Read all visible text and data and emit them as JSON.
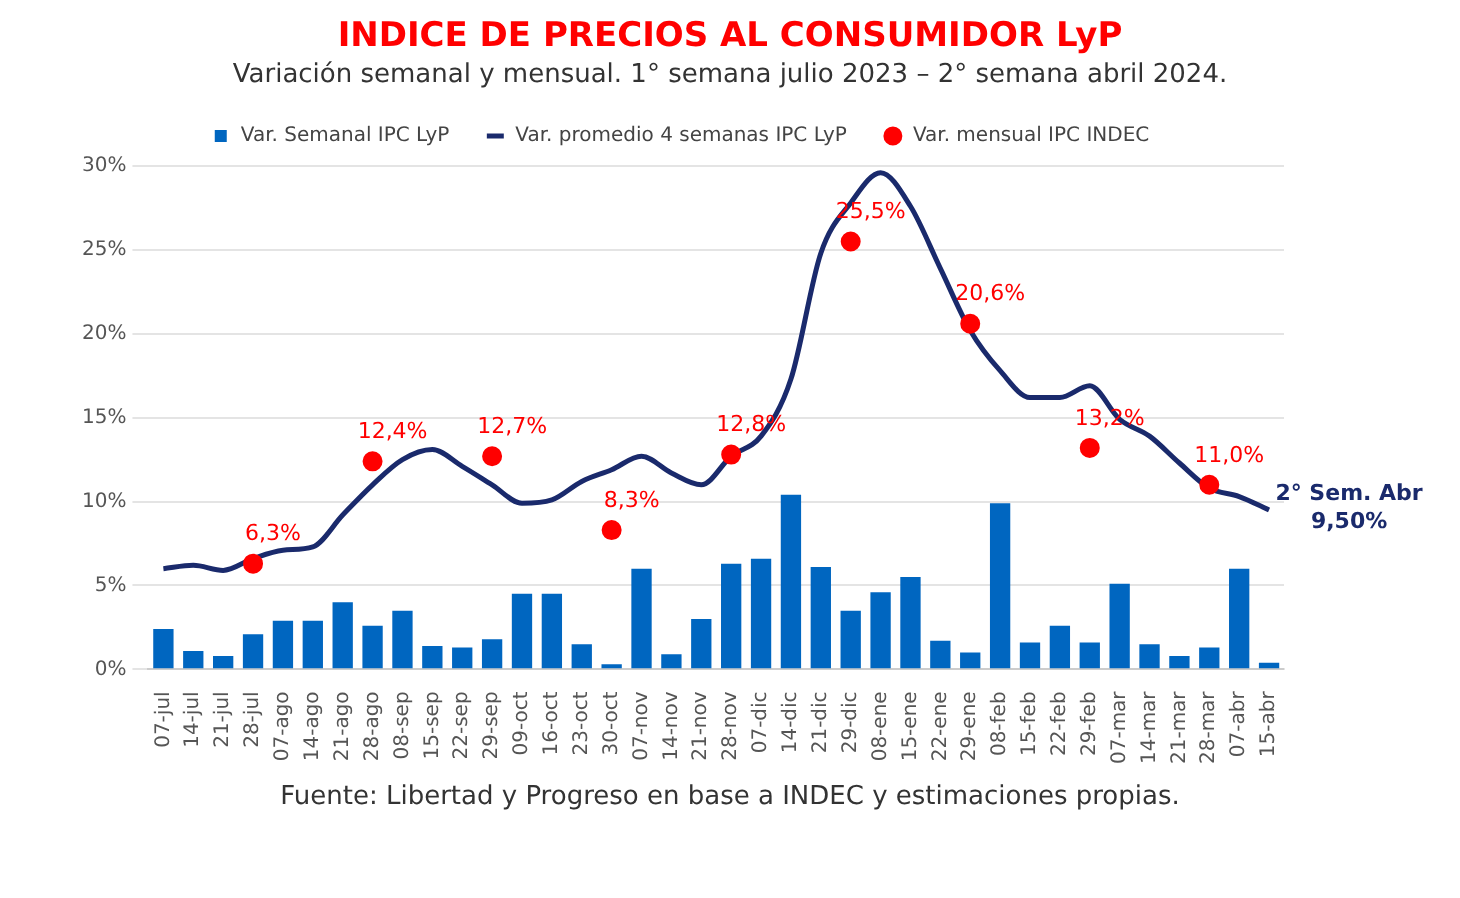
{
  "chart_data": {
    "type": "bar",
    "title": "INDICE DE PRECIOS AL CONSUMIDOR LyP",
    "subtitle": "Variación semanal y mensual. 1° semana julio 2023 – 2° semana abril 2024.",
    "categories": [
      "07-jul",
      "14-jul",
      "21-jul",
      "28-jul",
      "07-ago",
      "14-ago",
      "21-ago",
      "28-ago",
      "08-sep",
      "15-sep",
      "22-sep",
      "29-sep",
      "09-oct",
      "16-oct",
      "23-oct",
      "30-oct",
      "07-nov",
      "14-nov",
      "21-nov",
      "28-nov",
      "07-dic",
      "14-dic",
      "21-dic",
      "29-dic",
      "08-ene",
      "15-ene",
      "22-ene",
      "29-ene",
      "08-feb",
      "15-feb",
      "22-feb",
      "29-feb",
      "07-mar",
      "14-mar",
      "21-mar",
      "28-mar",
      "07-abr",
      "15-abr"
    ],
    "series": [
      {
        "name": "Var. Semanal IPC LyP",
        "color": "#0066c0",
        "values": [
          2.4,
          1.1,
          0.8,
          2.1,
          2.9,
          2.9,
          4.0,
          2.6,
          3.5,
          1.4,
          1.3,
          1.8,
          4.5,
          4.5,
          1.5,
          0.3,
          6.0,
          0.9,
          3.0,
          6.3,
          6.6,
          10.4,
          6.1,
          3.5,
          4.6,
          5.5,
          1.7,
          1.0,
          9.9,
          1.6,
          2.6,
          1.6,
          5.1,
          1.5,
          0.8,
          1.3,
          6.0,
          0.4
        ]
      },
      {
        "type": "line",
        "name": "Var. promedio 4 semanas IPC LyP",
        "color": "#1a2a6c",
        "marker": "none",
        "values": [
          6.0,
          6.2,
          5.9,
          6.6,
          7.1,
          7.3,
          9.2,
          11.0,
          12.5,
          13.1,
          12.1,
          11.0,
          9.9,
          10.1,
          11.2,
          11.9,
          12.7,
          11.7,
          11.0,
          12.7,
          13.9,
          17.3,
          24.8,
          27.8,
          29.6,
          27.6,
          23.9,
          20.2,
          17.8,
          16.2,
          16.2,
          16.9,
          14.9,
          13.9,
          12.3,
          10.8,
          10.3,
          9.5
        ]
      },
      {
        "type": "scatter",
        "name": "Var. mensual IPC INDEC",
        "color": "#ff0000",
        "marker": "circle",
        "x": [
          "28-jul",
          "28-ago",
          "29-sep",
          "30-oct",
          "28-nov",
          "29-dic",
          "29-ene",
          "29-feb",
          "28-mar"
        ],
        "values": [
          6.3,
          12.4,
          12.7,
          8.3,
          12.8,
          25.5,
          20.6,
          13.2,
          11.0
        ],
        "value_labels": [
          "6,3%",
          "12,4%",
          "12,7%",
          "8,3%",
          "12,8%",
          "25,5%",
          "20,6%",
          "13,2%",
          "11,0%"
        ]
      }
    ],
    "ylim": [
      0,
      30
    ],
    "yticks": [
      {
        "value": 0,
        "label": "0%"
      },
      {
        "value": 5,
        "label": "5%"
      },
      {
        "value": 10,
        "label": "10%"
      },
      {
        "value": 15,
        "label": "15%"
      },
      {
        "value": 20,
        "label": "20%"
      },
      {
        "value": 25,
        "label": "25%"
      },
      {
        "value": 30,
        "label": "30%"
      }
    ],
    "grid": "y",
    "legend": "top",
    "annotations": [
      {
        "text": "2° Sem. Abr 9,50%",
        "x": "15-abr",
        "y": 9.5
      },
      "Fuente: Libertad y Progreso en base a INDEC y estimaciones propias."
    ]
  }
}
